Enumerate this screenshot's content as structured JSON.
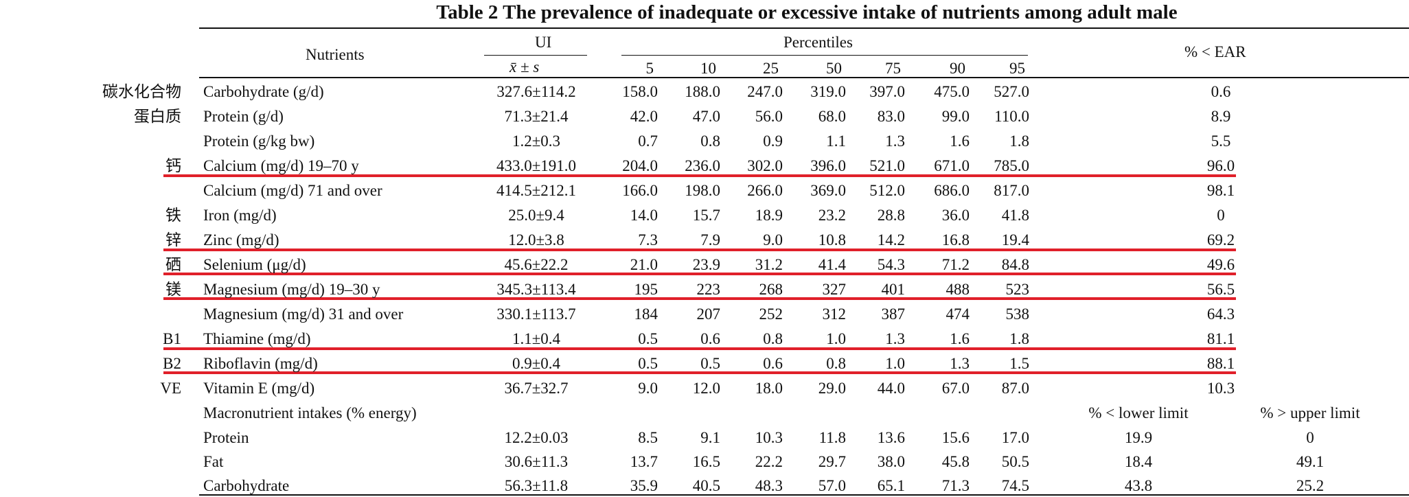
{
  "title": "Table 2    The prevalence of inadequate or excessive intake of nutrients among adult male",
  "headers": {
    "nutrients": "Nutrients",
    "ui": "UI",
    "mean_sd": "x̄ ± s",
    "percentiles": "Percentiles",
    "pct_cols": [
      "5",
      "10",
      "25",
      "50",
      "75",
      "90",
      "95"
    ],
    "ear": "% < EAR"
  },
  "rows": [
    {
      "cn": "碳水化合物",
      "name": "Carbohydrate (g/d)",
      "ui": "327.6±114.2",
      "p": [
        "158.0",
        "188.0",
        "247.0",
        "319.0",
        "397.0",
        "475.0",
        "527.0"
      ],
      "ear": "0.6"
    },
    {
      "cn": "蛋白质",
      "name": "Protein (g/d)",
      "ui": "71.3±21.4",
      "p": [
        "42.0",
        "47.0",
        "56.0",
        "68.0",
        "83.0",
        "99.0",
        "110.0"
      ],
      "ear": "8.9"
    },
    {
      "cn": "",
      "name": "Protein (g/kg bw)",
      "ui": "1.2±0.3",
      "p": [
        "0.7",
        "0.8",
        "0.9",
        "1.1",
        "1.3",
        "1.6",
        "1.8"
      ],
      "ear": "5.5"
    },
    {
      "cn": "钙",
      "name": "Calcium (mg/d) 19–70 y",
      "ui": "433.0±191.0",
      "p": [
        "204.0",
        "236.0",
        "302.0",
        "396.0",
        "521.0",
        "671.0",
        "785.0"
      ],
      "ear": "96.0"
    },
    {
      "cn": "",
      "name": "Calcium (mg/d) 71 and over",
      "ui": "414.5±212.1",
      "p": [
        "166.0",
        "198.0",
        "266.0",
        "369.0",
        "512.0",
        "686.0",
        "817.0"
      ],
      "ear": "98.1"
    },
    {
      "cn": "铁",
      "name": "Iron (mg/d)",
      "ui": "25.0±9.4",
      "p": [
        "14.0",
        "15.7",
        "18.9",
        "23.2",
        "28.8",
        "36.0",
        "41.8"
      ],
      "ear": "0"
    },
    {
      "cn": "锌",
      "name": "Zinc (mg/d)",
      "ui": "12.0±3.8",
      "p": [
        "7.3",
        "7.9",
        "9.0",
        "10.8",
        "14.2",
        "16.8",
        "19.4"
      ],
      "ear": "69.2"
    },
    {
      "cn": "硒",
      "name": "Selenium (μg/d)",
      "ui": "45.6±22.2",
      "p": [
        "21.0",
        "23.9",
        "31.2",
        "41.4",
        "54.3",
        "71.2",
        "84.8"
      ],
      "ear": "49.6"
    },
    {
      "cn": "镁",
      "name": "Magnesium (mg/d) 19–30 y",
      "ui": "345.3±113.4",
      "p": [
        "195",
        "223",
        "268",
        "327",
        "401",
        "488",
        "523"
      ],
      "ear": "56.5"
    },
    {
      "cn": "",
      "name": "Magnesium (mg/d) 31 and over",
      "ui": "330.1±113.7",
      "p": [
        "184",
        "207",
        "252",
        "312",
        "387",
        "474",
        "538"
      ],
      "ear": "64.3"
    },
    {
      "cn": "B1",
      "name": "Thiamine (mg/d)",
      "ui": "1.1±0.4",
      "p": [
        "0.5",
        "0.6",
        "0.8",
        "1.0",
        "1.3",
        "1.6",
        "1.8"
      ],
      "ear": "81.1"
    },
    {
      "cn": "B2",
      "name": "Riboflavin (mg/d)",
      "ui": "0.9±0.4",
      "p": [
        "0.5",
        "0.5",
        "0.6",
        "0.8",
        "1.0",
        "1.3",
        "1.5"
      ],
      "ear": "88.1"
    },
    {
      "cn": "VE",
      "name": "Vitamin E (mg/d)",
      "ui": "36.7±32.7",
      "p": [
        "9.0",
        "12.0",
        "18.0",
        "29.0",
        "44.0",
        "67.0",
        "87.0"
      ],
      "ear": "10.3"
    }
  ],
  "macro": {
    "heading": "Macronutrient intakes (% energy)",
    "lower_header": "% < lower limit",
    "upper_header": "% > upper limit",
    "rows": [
      {
        "name": "Protein",
        "ui": "12.2±0.03",
        "p": [
          "8.5",
          "9.1",
          "10.3",
          "11.8",
          "13.6",
          "15.6",
          "17.0"
        ],
        "lower": "19.9",
        "upper": "0"
      },
      {
        "name": "Fat",
        "ui": "30.6±11.3",
        "p": [
          "13.7",
          "16.5",
          "22.2",
          "29.7",
          "38.0",
          "45.8",
          "50.5"
        ],
        "lower": "18.4",
        "upper": "49.1"
      },
      {
        "name": "Carbohydrate",
        "ui": "56.3±11.8",
        "p": [
          "35.9",
          "40.5",
          "48.3",
          "57.0",
          "65.1",
          "71.3",
          "74.5"
        ],
        "lower": "43.8",
        "upper": "25.2"
      }
    ]
  },
  "highlight_color": "#e0202a"
}
